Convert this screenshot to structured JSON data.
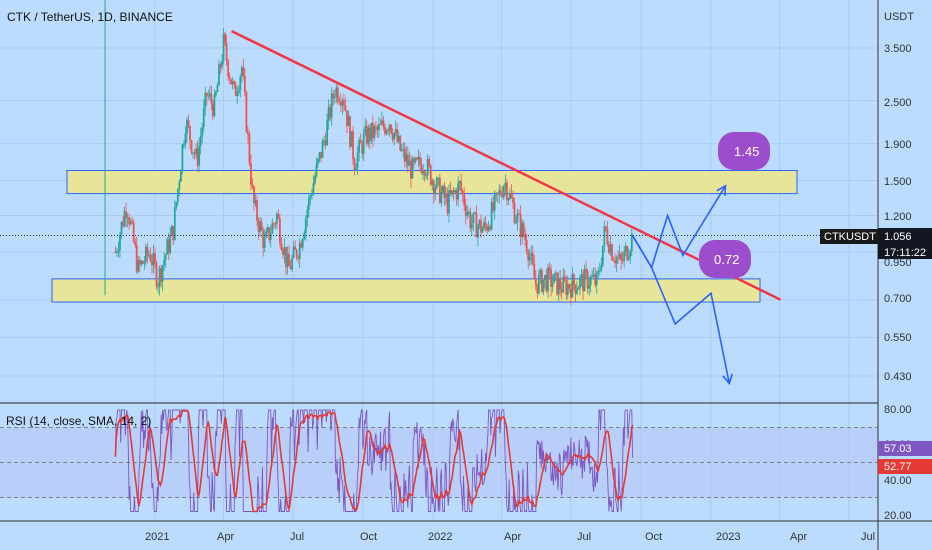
{
  "header": {
    "title": "CTK / TetherUS, 1D, BINANCE"
  },
  "price_axis": {
    "unit": "USDT",
    "ticks": [
      "3.500",
      "2.500",
      "1.900",
      "1.500",
      "1.200",
      "0.950",
      "0.700",
      "0.550",
      "0.430"
    ]
  },
  "rsi_axis": {
    "ticks": [
      "80.00",
      "60.00",
      "40.00",
      "20.00"
    ]
  },
  "time_axis": {
    "ticks": [
      "2021",
      "Apr",
      "Jul",
      "Oct",
      "2022",
      "Apr",
      "Jul",
      "Oct",
      "2023",
      "Apr",
      "Jul"
    ]
  },
  "symbol_badge": {
    "label": "CTKUSDT",
    "price": "1.056",
    "countdown": "17:11:22"
  },
  "rsi_panel": {
    "label": "RSI (14, close, SMA, 14, 2)",
    "rsi_value": "57.03",
    "sma_value": "52.77"
  },
  "annotations": {
    "target_up": "1.45",
    "target_down": "0.72"
  },
  "colors": {
    "background": "#bcdcff",
    "up": "#26a69a",
    "down": "#ef5350",
    "trendline": "#f23645",
    "zone": "#e6e59a",
    "zone_border": "#2962ff",
    "projection": "#2962ff",
    "bubble": "#9c4dcc",
    "rsi": "#7e57c2",
    "rsi_sma": "#e53935"
  },
  "chart_data": [
    {
      "type": "candlestick",
      "title": "CTK / TetherUS, 1D, BINANCE",
      "x_range": [
        "2020-11",
        "2023-07"
      ],
      "y_scale": "log",
      "ylim": [
        0.38,
        4.2
      ],
      "series": [
        {
          "name": "CTKUSDT",
          "close_path": [
            [
              "2020-11-10",
              0.95
            ],
            [
              "2020-11-25",
              1.3
            ],
            [
              "2020-12-10",
              0.85
            ],
            [
              "2020-12-25",
              0.95
            ],
            [
              "2021-01-05",
              0.8
            ],
            [
              "2021-01-25",
              1.1
            ],
            [
              "2021-02-10",
              2.2
            ],
            [
              "2021-02-25",
              1.7
            ],
            [
              "2021-03-10",
              2.6
            ],
            [
              "2021-03-20",
              2.4
            ],
            [
              "2021-04-01",
              3.6
            ],
            [
              "2021-04-15",
              2.6
            ],
            [
              "2021-04-25",
              3.1
            ],
            [
              "2021-05-10",
              1.3
            ],
            [
              "2021-05-25",
              1.0
            ],
            [
              "2021-06-10",
              1.2
            ],
            [
              "2021-06-25",
              0.85
            ],
            [
              "2021-07-10",
              1.0
            ],
            [
              "2021-07-25",
              1.4
            ],
            [
              "2021-08-10",
              1.9
            ],
            [
              "2021-08-25",
              2.7
            ],
            [
              "2021-09-05",
              2.6
            ],
            [
              "2021-09-20",
              1.7
            ],
            [
              "2021-10-05",
              2.0
            ],
            [
              "2021-10-20",
              2.05
            ],
            [
              "2021-11-05",
              2.2
            ],
            [
              "2021-11-20",
              1.8
            ],
            [
              "2021-12-05",
              1.6
            ],
            [
              "2021-12-20",
              1.7
            ],
            [
              "2022-01-05",
              1.45
            ],
            [
              "2022-01-20",
              1.3
            ],
            [
              "2022-02-05",
              1.45
            ],
            [
              "2022-02-20",
              1.15
            ],
            [
              "2022-03-10",
              1.1
            ],
            [
              "2022-03-25",
              1.3
            ],
            [
              "2022-04-05",
              1.5
            ],
            [
              "2022-04-20",
              1.2
            ],
            [
              "2022-05-05",
              1.0
            ],
            [
              "2022-05-15",
              0.78
            ],
            [
              "2022-06-01",
              0.8
            ],
            [
              "2022-06-20",
              0.76
            ],
            [
              "2022-07-10",
              0.78
            ],
            [
              "2022-07-25",
              0.8
            ],
            [
              "2022-08-05",
              0.78
            ],
            [
              "2022-08-15",
              1.1
            ],
            [
              "2022-08-25",
              0.95
            ],
            [
              "2022-09-05",
              0.88
            ],
            [
              "2022-09-20",
              1.056
            ]
          ]
        }
      ],
      "trendline": {
        "from": [
          "2021-04-01",
          3.9
        ],
        "to": [
          "2023-03-15",
          0.7
        ]
      },
      "zones": [
        {
          "name": "upper zone",
          "low": 1.38,
          "high": 1.6
        },
        {
          "name": "lower zone",
          "low": 0.69,
          "high": 0.8
        }
      ],
      "projection_up": [
        [
          "2022-09-20",
          1.056
        ],
        [
          "2022-10-15",
          0.86
        ],
        [
          "2022-11-05",
          1.2
        ],
        [
          "2022-11-25",
          0.93
        ],
        [
          "2023-01-20",
          1.45
        ]
      ],
      "projection_down": [
        [
          "2022-09-20",
          1.056
        ],
        [
          "2022-10-15",
          0.86
        ],
        [
          "2022-11-15",
          0.6
        ],
        [
          "2023-01-01",
          0.73
        ],
        [
          "2023-01-25",
          0.41
        ]
      ],
      "current_price": 1.056
    },
    {
      "type": "line",
      "title": "RSI (14, close, SMA, 14, 2)",
      "ylim": [
        15,
        85
      ],
      "bands": [
        70,
        50,
        30
      ],
      "series": [
        {
          "name": "RSI",
          "last": 57.03
        },
        {
          "name": "SMA",
          "last": 52.77
        }
      ]
    }
  ]
}
